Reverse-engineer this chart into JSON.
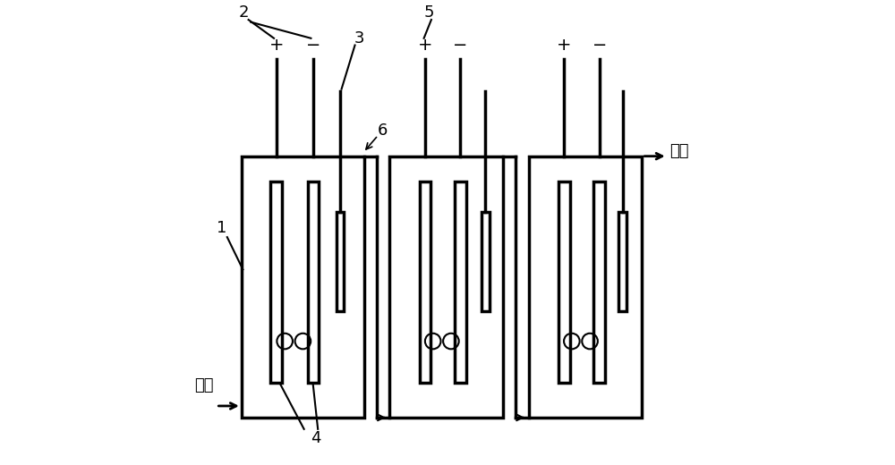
{
  "bg_color": "#ffffff",
  "line_color": "#000000",
  "fig_width": 10.0,
  "fig_height": 5.2,
  "inlet_text": "进水",
  "outlet_text": "出水",
  "font_size": 13
}
